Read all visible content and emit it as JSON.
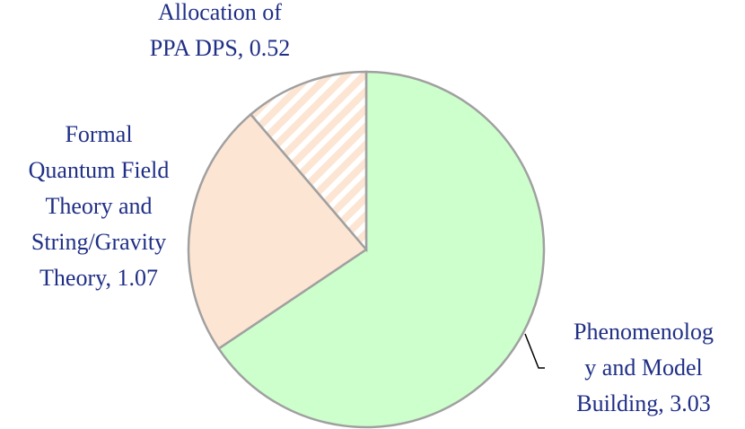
{
  "chart_data": {
    "type": "pie",
    "categories": [
      "Phenomenology and Model Building",
      "Formal Quantum Field Theory and String/Gravity Theory",
      "Allocation of PPA DPS"
    ],
    "values": [
      3.03,
      1.07,
      0.52
    ],
    "colors": [
      "#ccffcc",
      "#fde5d3",
      "#fde5d3"
    ],
    "hatched": [
      false,
      false,
      true
    ]
  }
}
